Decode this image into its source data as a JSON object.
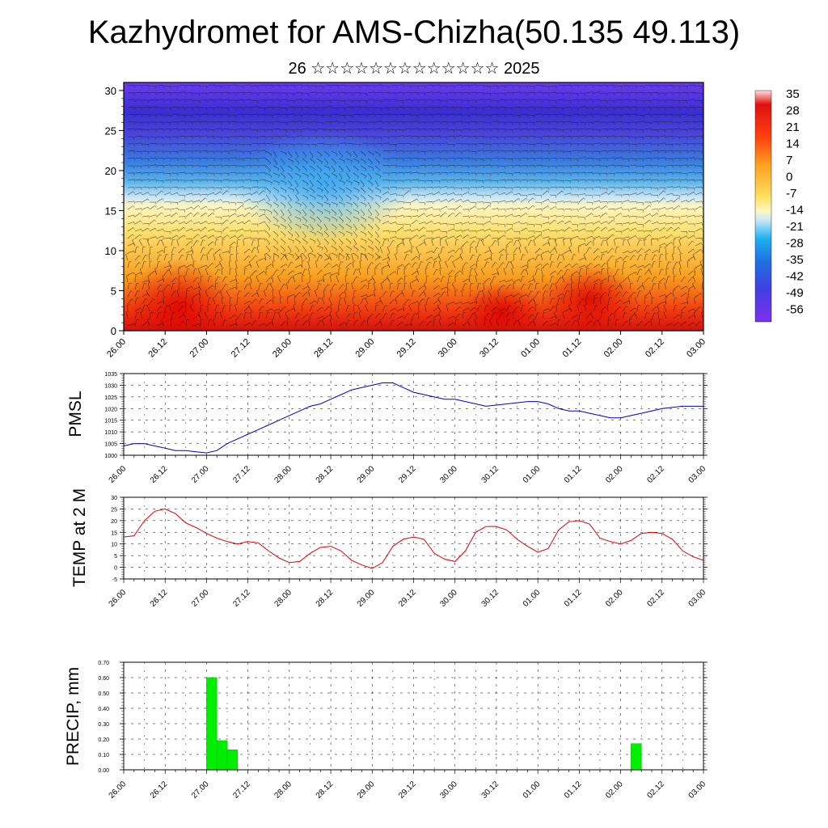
{
  "title": "Kazhydromet for AMS-Chizha(50.135 49.113)",
  "subtitle": "26 ☆☆☆☆☆☆☆☆☆☆☆☆☆ 2025",
  "time_ticks": [
    "26.00",
    "26.12",
    "27.00",
    "27.12",
    "28.00",
    "28.12",
    "29.00",
    "29.12",
    "30.00",
    "30.12",
    "01.00",
    "01.12",
    "02.00",
    "02.12",
    "03.00"
  ],
  "chart_data": [
    {
      "type": "heatmap",
      "title": "",
      "xlabel": "",
      "ylabel": "",
      "x": [
        "26.00",
        "26.12",
        "27.00",
        "27.12",
        "28.00",
        "28.12",
        "29.00",
        "29.12",
        "30.00",
        "30.12",
        "01.00",
        "01.12",
        "02.00",
        "02.12",
        "03.00"
      ],
      "ylim": [
        0,
        31
      ],
      "yticks": [
        0,
        5,
        10,
        15,
        20,
        25,
        30
      ],
      "colorbar_labels": [
        "35",
        "28",
        "21",
        "14",
        "7",
        "0",
        "-7",
        "-14",
        "-21",
        "-28",
        "-35",
        "-42",
        "-49",
        "-56"
      ],
      "colorbar_values": [
        35,
        28,
        21,
        14,
        7,
        0,
        -7,
        -14,
        -21,
        -28,
        -35,
        -42,
        -49,
        -56
      ],
      "colors": [
        "#ff2020",
        "#ffa020",
        "#ffe060",
        "#b8d8f0",
        "#20a0e0",
        "#5050e0",
        "#7020f0"
      ]
    },
    {
      "type": "line",
      "ylabel": "PMSL",
      "ylim": [
        1000,
        1035
      ],
      "yticks": [
        1000,
        1005,
        1010,
        1015,
        1020,
        1025,
        1030,
        1035
      ],
      "series": [
        {
          "color": "#0000c8",
          "x": [
            0,
            3,
            6,
            9,
            12,
            15,
            18,
            21,
            24,
            27,
            30,
            33,
            36,
            39,
            42,
            45,
            48,
            51,
            54,
            57,
            60,
            63,
            66,
            69,
            72,
            75,
            78,
            81,
            84,
            87,
            90,
            93,
            96,
            99,
            102,
            105,
            108,
            111,
            114,
            117,
            120,
            123,
            126,
            129,
            132,
            135,
            138,
            141,
            144,
            147,
            150,
            153,
            156,
            159,
            162,
            165,
            168
          ],
          "values": [
            1004,
            1005,
            1005,
            1004,
            1003,
            1002,
            1002,
            1001.5,
            1001,
            1002,
            1005,
            1007,
            1009,
            1011,
            1013,
            1015,
            1017,
            1019,
            1021,
            1022,
            1024,
            1026,
            1028,
            1029,
            1030,
            1031,
            1031,
            1029,
            1027,
            1026,
            1025,
            1024,
            1024,
            1023,
            1022,
            1021,
            1021.5,
            1022,
            1022.5,
            1023,
            1023,
            1022,
            1020,
            1019,
            1019,
            1018,
            1017,
            1016,
            1016,
            1017,
            1018,
            1019,
            1020,
            1020.5,
            1021,
            1021,
            1021
          ]
        }
      ]
    },
    {
      "type": "line",
      "ylabel": "TEMP at 2 M",
      "ylim": [
        -5,
        30
      ],
      "yticks": [
        -5,
        0,
        5,
        10,
        15,
        20,
        25,
        30
      ],
      "series": [
        {
          "color": "#e00000",
          "x": [
            0,
            3,
            6,
            9,
            12,
            15,
            18,
            21,
            24,
            27,
            30,
            33,
            36,
            39,
            42,
            45,
            48,
            51,
            54,
            57,
            60,
            63,
            66,
            69,
            72,
            75,
            78,
            81,
            84,
            87,
            90,
            93,
            96,
            99,
            102,
            105,
            108,
            111,
            114,
            117,
            120,
            123,
            126,
            129,
            132,
            135,
            138,
            141,
            144,
            147,
            150,
            153,
            156,
            159,
            162,
            165,
            168
          ],
          "values": [
            13,
            13.5,
            20,
            24,
            25,
            23,
            19,
            17,
            14.5,
            12.5,
            11,
            10,
            11,
            10.5,
            7,
            4,
            2,
            2.5,
            6,
            8.5,
            9,
            7,
            3,
            1,
            -0.5,
            2,
            9,
            12,
            13,
            12,
            6,
            3.5,
            2.5,
            7,
            15,
            17.5,
            17.5,
            16,
            12,
            9,
            6.5,
            8,
            16,
            19.5,
            20,
            18.5,
            12.5,
            11,
            10,
            11.5,
            14.5,
            15,
            14.5,
            12,
            7,
            4.5,
            3
          ]
        }
      ]
    },
    {
      "type": "bar",
      "ylabel": "PRECIP, mm",
      "ylim": [
        0,
        0.7
      ],
      "yticks_labels": [
        "0.00",
        "0.10",
        "0.20",
        "0.30",
        "0.40",
        "0.50",
        "0.60",
        "0.70"
      ],
      "color": "#00ee00",
      "bars": [
        {
          "x": 24,
          "width": 3,
          "value": 0.6
        },
        {
          "x": 27,
          "width": 3,
          "value": 0.19
        },
        {
          "x": 30,
          "width": 3,
          "value": 0.13
        },
        {
          "x": 147,
          "width": 3,
          "value": 0.17
        }
      ]
    }
  ]
}
